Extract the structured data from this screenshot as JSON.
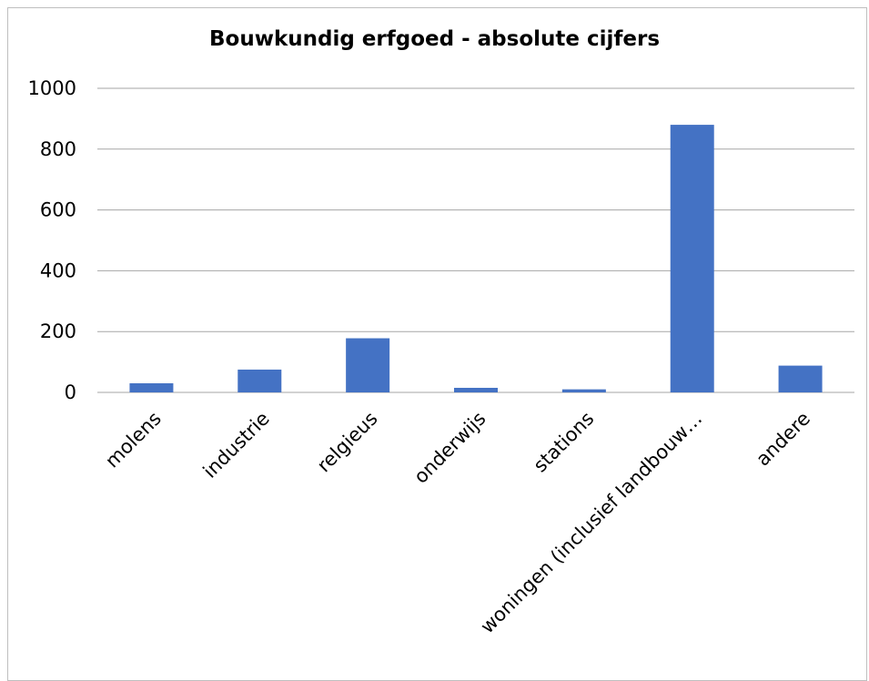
{
  "chart_data": {
    "type": "bar",
    "title": "Bouwkundig erfgoed - absolute cijfers",
    "categories": [
      "molens",
      "industrie",
      "relgieus",
      "onderwijs",
      "stations",
      "woningen (inclusief landbouw…",
      "andere"
    ],
    "series": [
      {
        "values": [
          30,
          75,
          178,
          15,
          10,
          880,
          88
        ],
        "color": "#4472c4"
      }
    ],
    "ylim": [
      0,
      1000
    ],
    "yticks": [
      0,
      200,
      400,
      600,
      800,
      1000
    ],
    "grid": true,
    "legend": "none"
  }
}
